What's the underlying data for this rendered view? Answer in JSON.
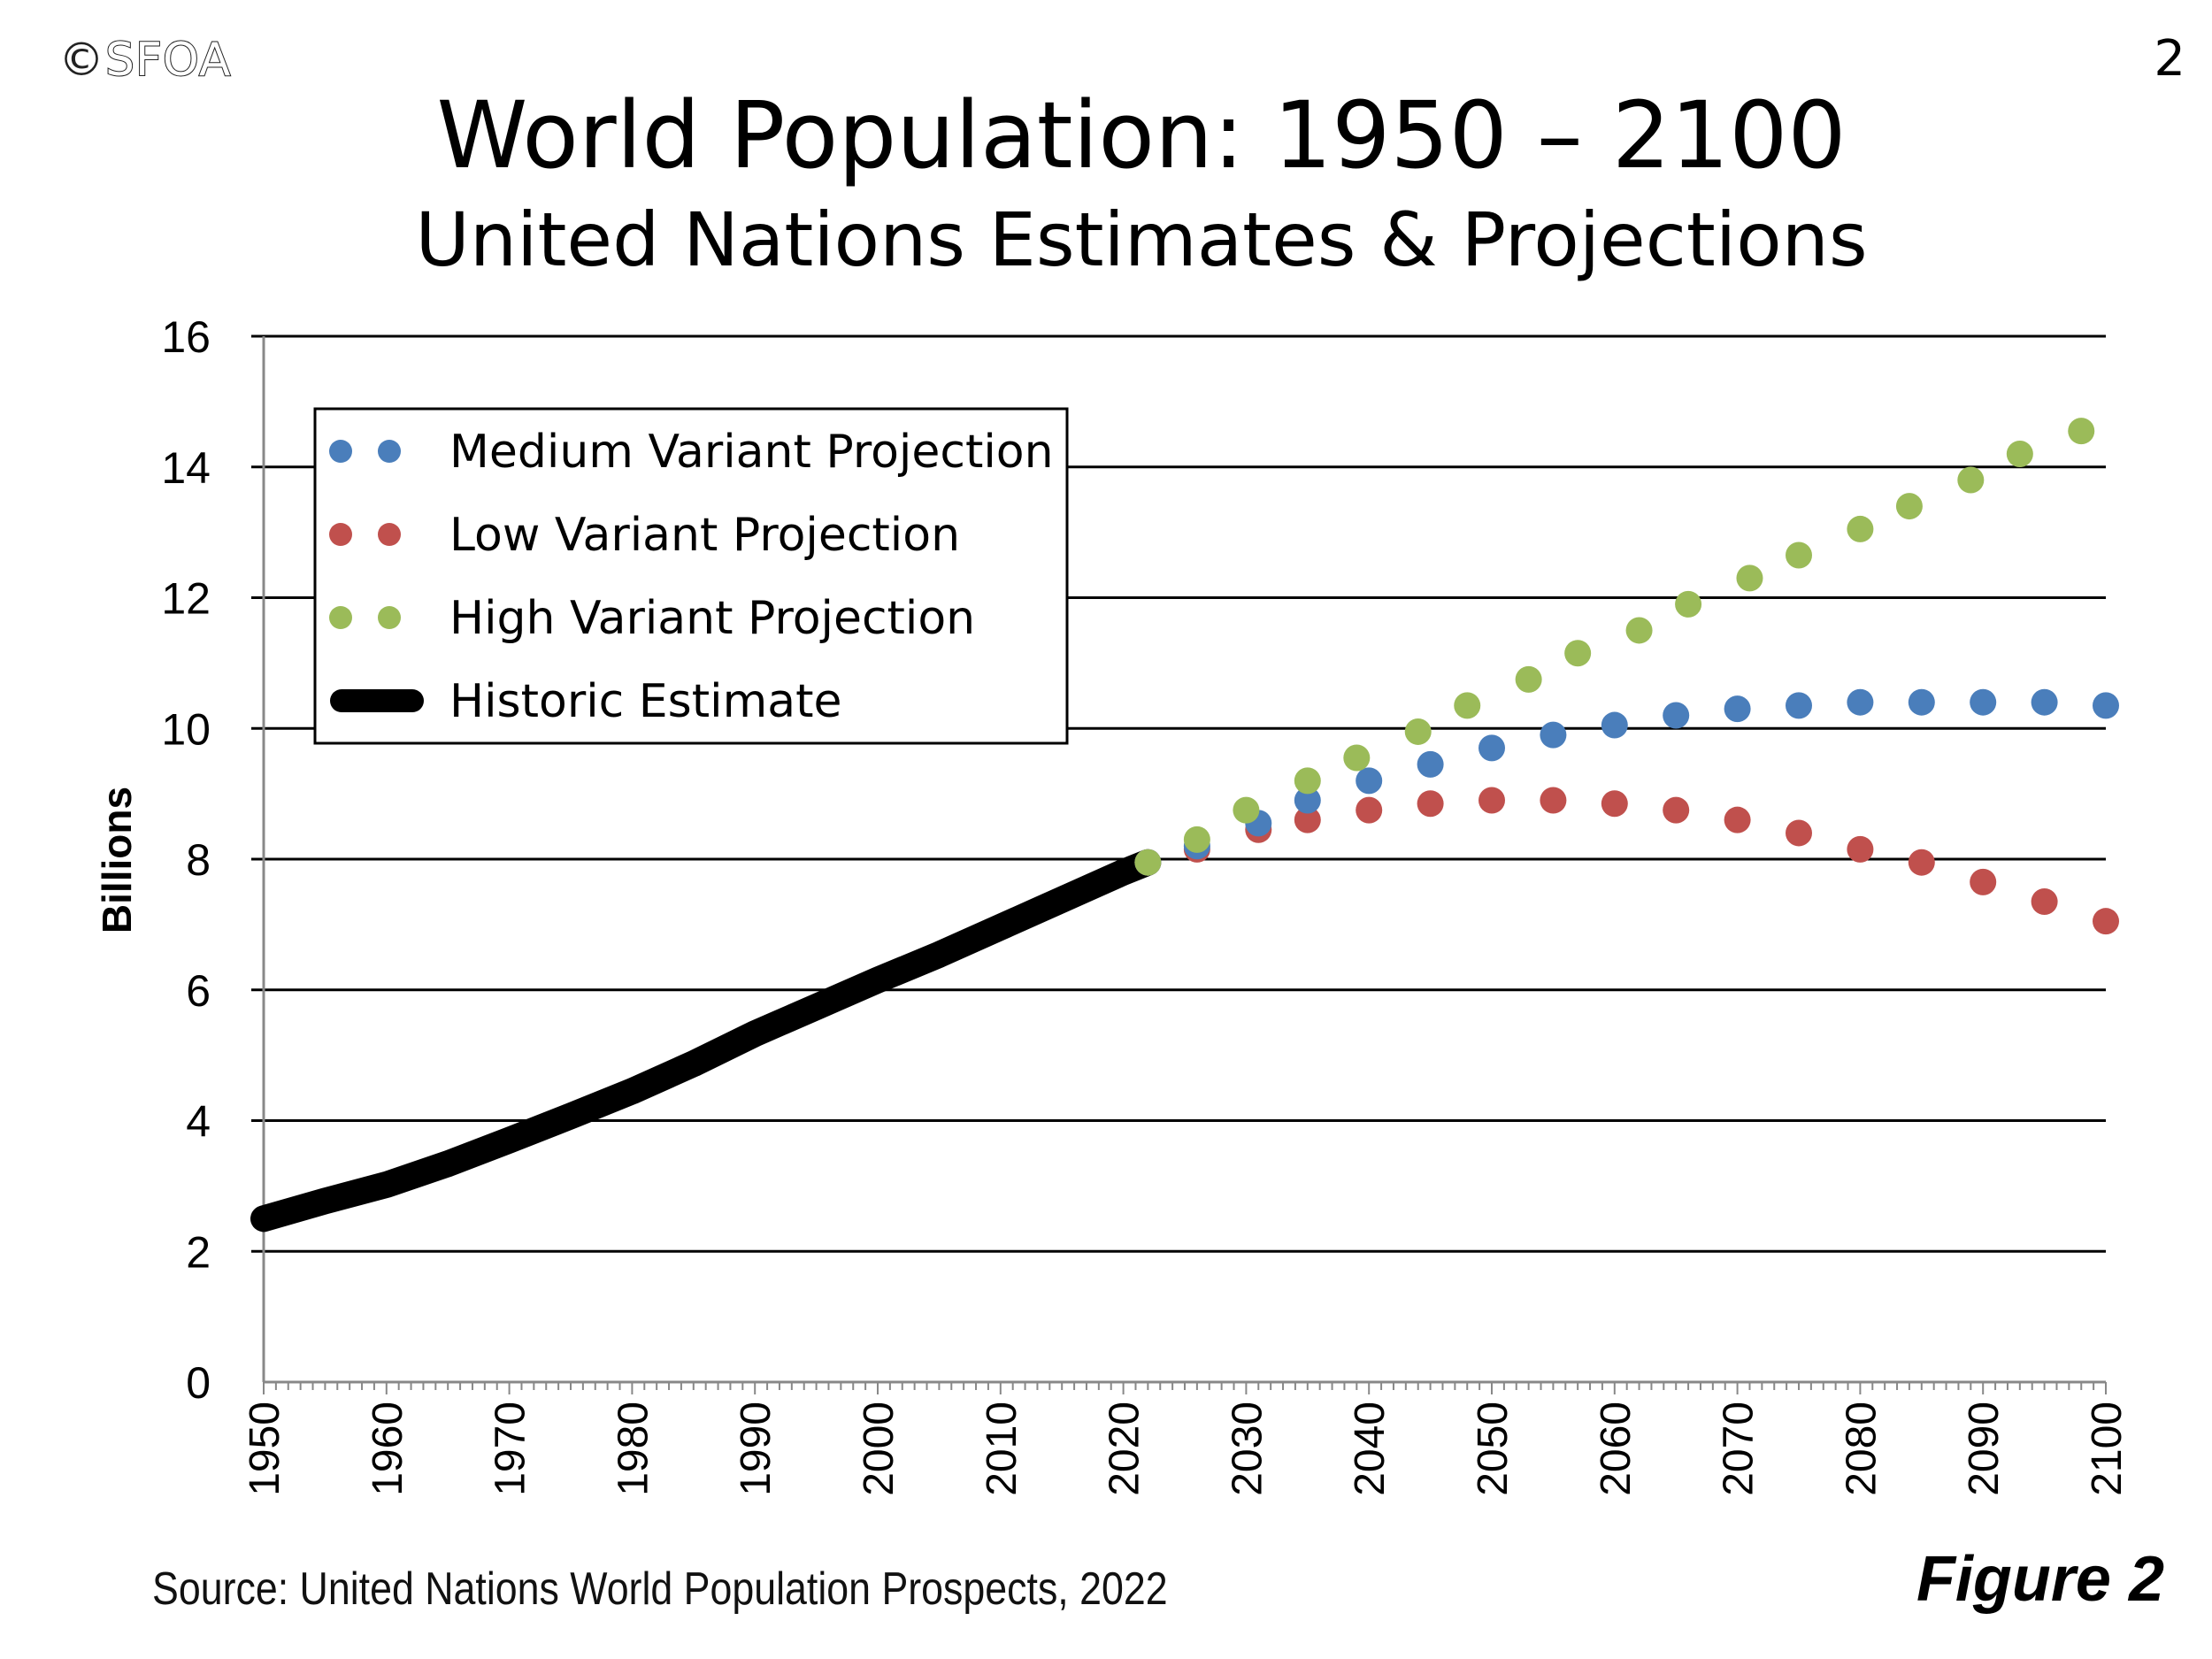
{
  "header": {
    "logo_text": "SFOA",
    "logo_symbol": "©",
    "page_number": "2"
  },
  "footer": {
    "source": "Source: United Nations World Population Prospects, 2022",
    "figure_label": "Figure 2"
  },
  "chart_data": {
    "type": "scatter",
    "title": "World Population: 1950 – 2100",
    "subtitle": "United Nations Estimates & Projections",
    "ylabel": "Billions",
    "xlabel": "",
    "xlim": [
      1950,
      2100
    ],
    "ylim": [
      0,
      16
    ],
    "yticks": [
      "0",
      "2",
      "4",
      "6",
      "8",
      "10",
      "12",
      "14",
      "16"
    ],
    "xticks": [
      "1950",
      "1960",
      "1970",
      "1980",
      "1990",
      "2000",
      "2010",
      "2020",
      "2030",
      "2040",
      "2050",
      "2060",
      "2070",
      "2080",
      "2090",
      "2100"
    ],
    "grid": true,
    "legend_position": "top-left",
    "series": [
      {
        "name": "Medium Variant Projection",
        "color": "#4a7ebb",
        "style": "dots",
        "x": [
          2022,
          2026,
          2031,
          2035,
          2040,
          2045,
          2050,
          2055,
          2060,
          2065,
          2070,
          2075,
          2080,
          2085,
          2090,
          2095,
          2100
        ],
        "values": [
          7.95,
          8.2,
          8.55,
          8.9,
          9.2,
          9.45,
          9.7,
          9.9,
          10.05,
          10.2,
          10.3,
          10.35,
          10.4,
          10.4,
          10.4,
          10.4,
          10.35
        ]
      },
      {
        "name": "Low Variant Projection",
        "color": "#c0504d",
        "style": "dots",
        "x": [
          2022,
          2026,
          2031,
          2035,
          2040,
          2045,
          2050,
          2055,
          2060,
          2065,
          2070,
          2075,
          2080,
          2085,
          2090,
          2095,
          2100
        ],
        "values": [
          7.95,
          8.15,
          8.45,
          8.6,
          8.75,
          8.85,
          8.9,
          8.9,
          8.85,
          8.75,
          8.6,
          8.4,
          8.15,
          7.95,
          7.65,
          7.35,
          7.05
        ]
      },
      {
        "name": "High Variant Projection",
        "color": "#9bbb59",
        "style": "dots",
        "x": [
          2022,
          2026,
          2030,
          2035,
          2039,
          2044,
          2048,
          2053,
          2057,
          2062,
          2066,
          2071,
          2075,
          2080,
          2084,
          2089,
          2093,
          2098
        ],
        "values": [
          7.95,
          8.3,
          8.75,
          9.2,
          9.55,
          9.95,
          10.35,
          10.75,
          11.15,
          11.5,
          11.9,
          12.3,
          12.65,
          13.05,
          13.4,
          13.8,
          14.2,
          14.55
        ]
      },
      {
        "name": "Historic Estimate",
        "color": "#000000",
        "style": "line",
        "x": [
          1950,
          1955,
          1960,
          1965,
          1970,
          1975,
          1980,
          1985,
          1990,
          1995,
          2000,
          2005,
          2010,
          2015,
          2020,
          2022
        ],
        "values": [
          2.5,
          2.77,
          3.02,
          3.34,
          3.7,
          4.07,
          4.45,
          4.87,
          5.33,
          5.74,
          6.15,
          6.54,
          6.96,
          7.38,
          7.8,
          7.95
        ]
      }
    ]
  }
}
